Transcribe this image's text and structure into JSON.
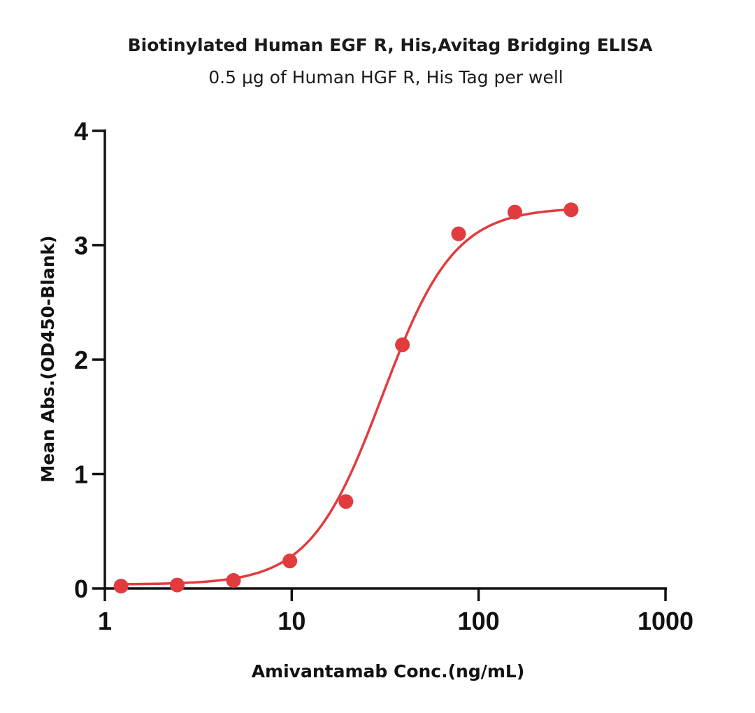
{
  "chart_data": {
    "type": "scatter",
    "title": "Biotinylated Human EGF R, His,Avitag Bridging ELISA",
    "subtitle": "0.5 μg of Human HGF R, His Tag per well",
    "xlabel": "Amivantamab Conc.(ng/mL)",
    "ylabel": "Mean Abs.(OD450-Blank)",
    "xscale": "log",
    "xlim": [
      1,
      1000
    ],
    "ylim": [
      0,
      4
    ],
    "x_ticks": [
      1,
      10,
      100,
      1000
    ],
    "x_tick_labels": [
      "1",
      "10",
      "100",
      "1000"
    ],
    "y_ticks": [
      0,
      1,
      2,
      3,
      4
    ],
    "y_tick_labels": [
      "0",
      "1",
      "2",
      "3",
      "4"
    ],
    "grid": false,
    "legend": "none",
    "series": [
      {
        "name": "Amivantamab",
        "color": "#e23b3e",
        "x": [
          1.22,
          2.44,
          4.88,
          9.77,
          19.5,
          39.1,
          78.1,
          156.3,
          312.5
        ],
        "y": [
          0.02,
          0.03,
          0.07,
          0.24,
          0.76,
          2.13,
          3.1,
          3.29,
          3.31
        ],
        "fit": {
          "model": "4PL",
          "bottom": 0.035,
          "top": 3.33,
          "ec50": 30.5,
          "hill": 2.25
        }
      }
    ]
  }
}
